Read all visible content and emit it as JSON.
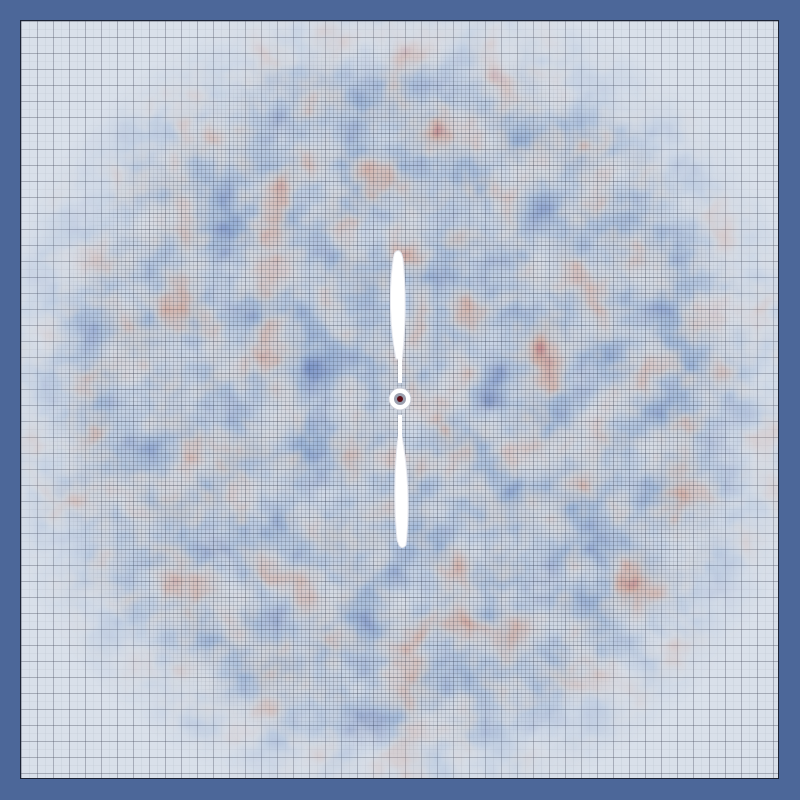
{
  "viewer": {
    "background_color": "#4c6799",
    "far_field_color": "#d9e0ea",
    "mesh_line_color": "#1b2233",
    "colormap": {
      "low": "#0c1f64",
      "mid_low": "#4f6fa8",
      "mid": "#8d8f9a",
      "mid_high": "#a4604f",
      "high": "#720b14"
    },
    "geometry_color": "#ffffff"
  }
}
